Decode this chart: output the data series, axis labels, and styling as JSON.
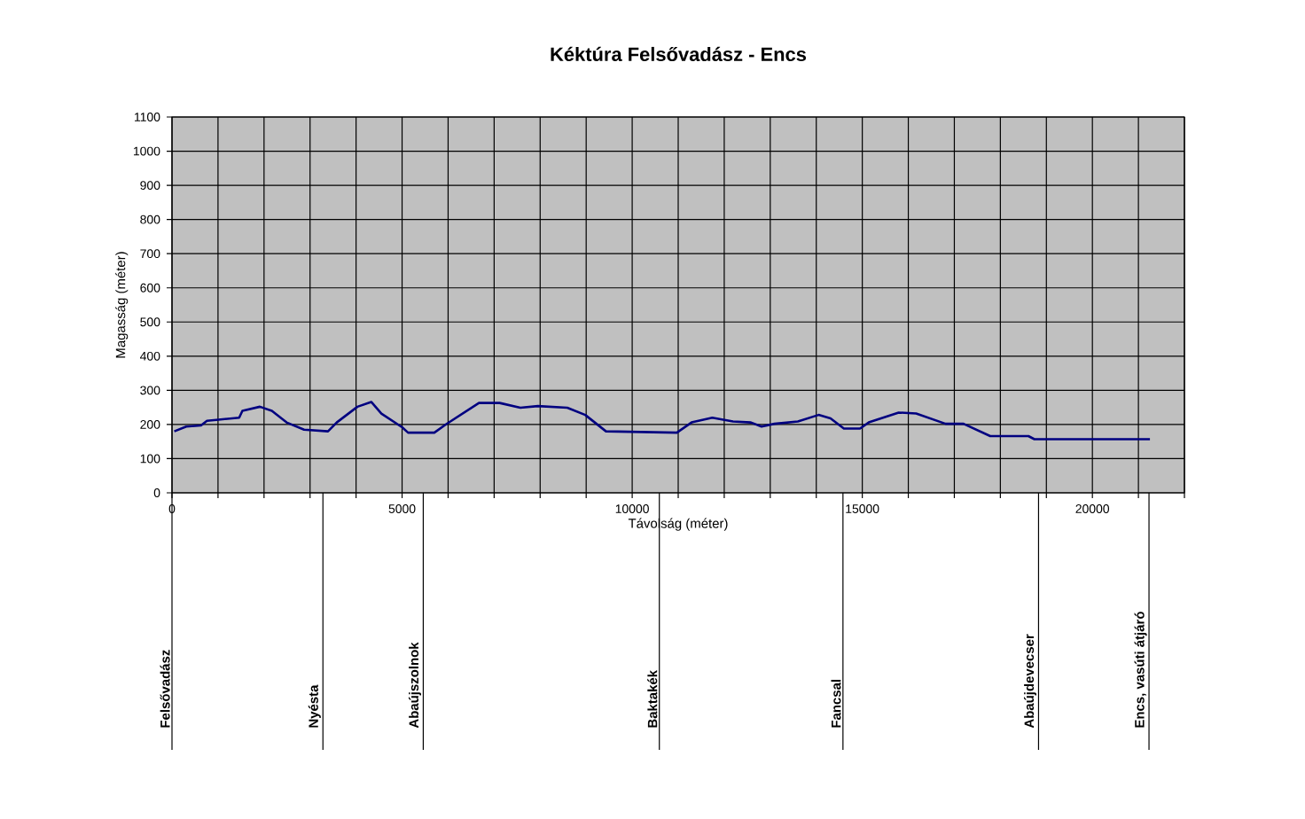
{
  "chart_data": {
    "type": "line",
    "title": "Kéktúra Felsővadász - Encs",
    "xlabel": "Távolság (méter)",
    "ylabel": "Magasság (méter)",
    "xlim": [
      0,
      22000
    ],
    "ylim": [
      0,
      1100
    ],
    "xticks": [
      0,
      {
        "value": 1000,
        "label": null
      },
      {
        "value": 2000,
        "label": null
      },
      {
        "value": 3000,
        "label": null
      },
      {
        "value": 4000,
        "label": null
      },
      5000,
      {
        "value": 6000,
        "label": null
      },
      {
        "value": 7000,
        "label": null
      },
      {
        "value": 8000,
        "label": null
      },
      {
        "value": 9000,
        "label": null
      },
      10000,
      {
        "value": 11000,
        "label": null
      },
      {
        "value": 12000,
        "label": null
      },
      {
        "value": 13000,
        "label": null
      },
      {
        "value": 14000,
        "label": null
      },
      15000,
      {
        "value": 16000,
        "label": null
      },
      {
        "value": 17000,
        "label": null
      },
      {
        "value": 18000,
        "label": null
      },
      {
        "value": 19000,
        "label": null
      },
      20000,
      {
        "value": 21000,
        "label": null
      },
      {
        "value": 22000,
        "label": null
      }
    ],
    "yticks": [
      0,
      100,
      200,
      300,
      400,
      500,
      600,
      700,
      800,
      900,
      1000,
      1100
    ],
    "grid": true,
    "marker": "none",
    "line_style": "solid",
    "series": [
      {
        "color": "#000080",
        "x": [
          50,
          310,
          630,
          760,
          1010,
          1460,
          1530,
          1910,
          2170,
          2490,
          2870,
          3390,
          3580,
          4030,
          4330,
          4550,
          5000,
          5130,
          5700,
          5960,
          6670,
          7120,
          7570,
          7950,
          8590,
          8980,
          9430,
          10970,
          11290,
          11740,
          12190,
          12580,
          12810,
          13090,
          13600,
          14050,
          14310,
          14600,
          14950,
          15140,
          15790,
          16170,
          16810,
          17200,
          17780,
          18610,
          18740,
          21250
        ],
        "values": [
          180,
          194,
          197,
          211,
          214,
          220,
          240,
          252,
          240,
          206,
          185,
          180,
          206,
          252,
          266,
          232,
          192,
          176,
          176,
          201,
          263,
          263,
          249,
          254,
          249,
          228,
          180,
          176,
          206,
          220,
          209,
          206,
          194,
          202,
          209,
          228,
          218,
          188,
          188,
          206,
          235,
          232,
          202,
          202,
          166,
          166,
          157,
          157
        ]
      }
    ],
    "ref_lines": [
      {
        "axis": "x",
        "value": 0,
        "label": "Felsővadász"
      },
      {
        "axis": "x",
        "value": 3280,
        "label": "Nyésta"
      },
      {
        "axis": "x",
        "value": 5460,
        "label": "Abaújszolnok"
      },
      {
        "axis": "x",
        "value": 10590,
        "label": "Baktakék"
      },
      {
        "axis": "x",
        "value": 14580,
        "label": "Fancsal"
      },
      {
        "axis": "x",
        "value": 18830,
        "label": "Abaújdevecser"
      },
      {
        "axis": "x",
        "value": 21230,
        "label": "Encs, vasúti átjáró"
      }
    ]
  }
}
